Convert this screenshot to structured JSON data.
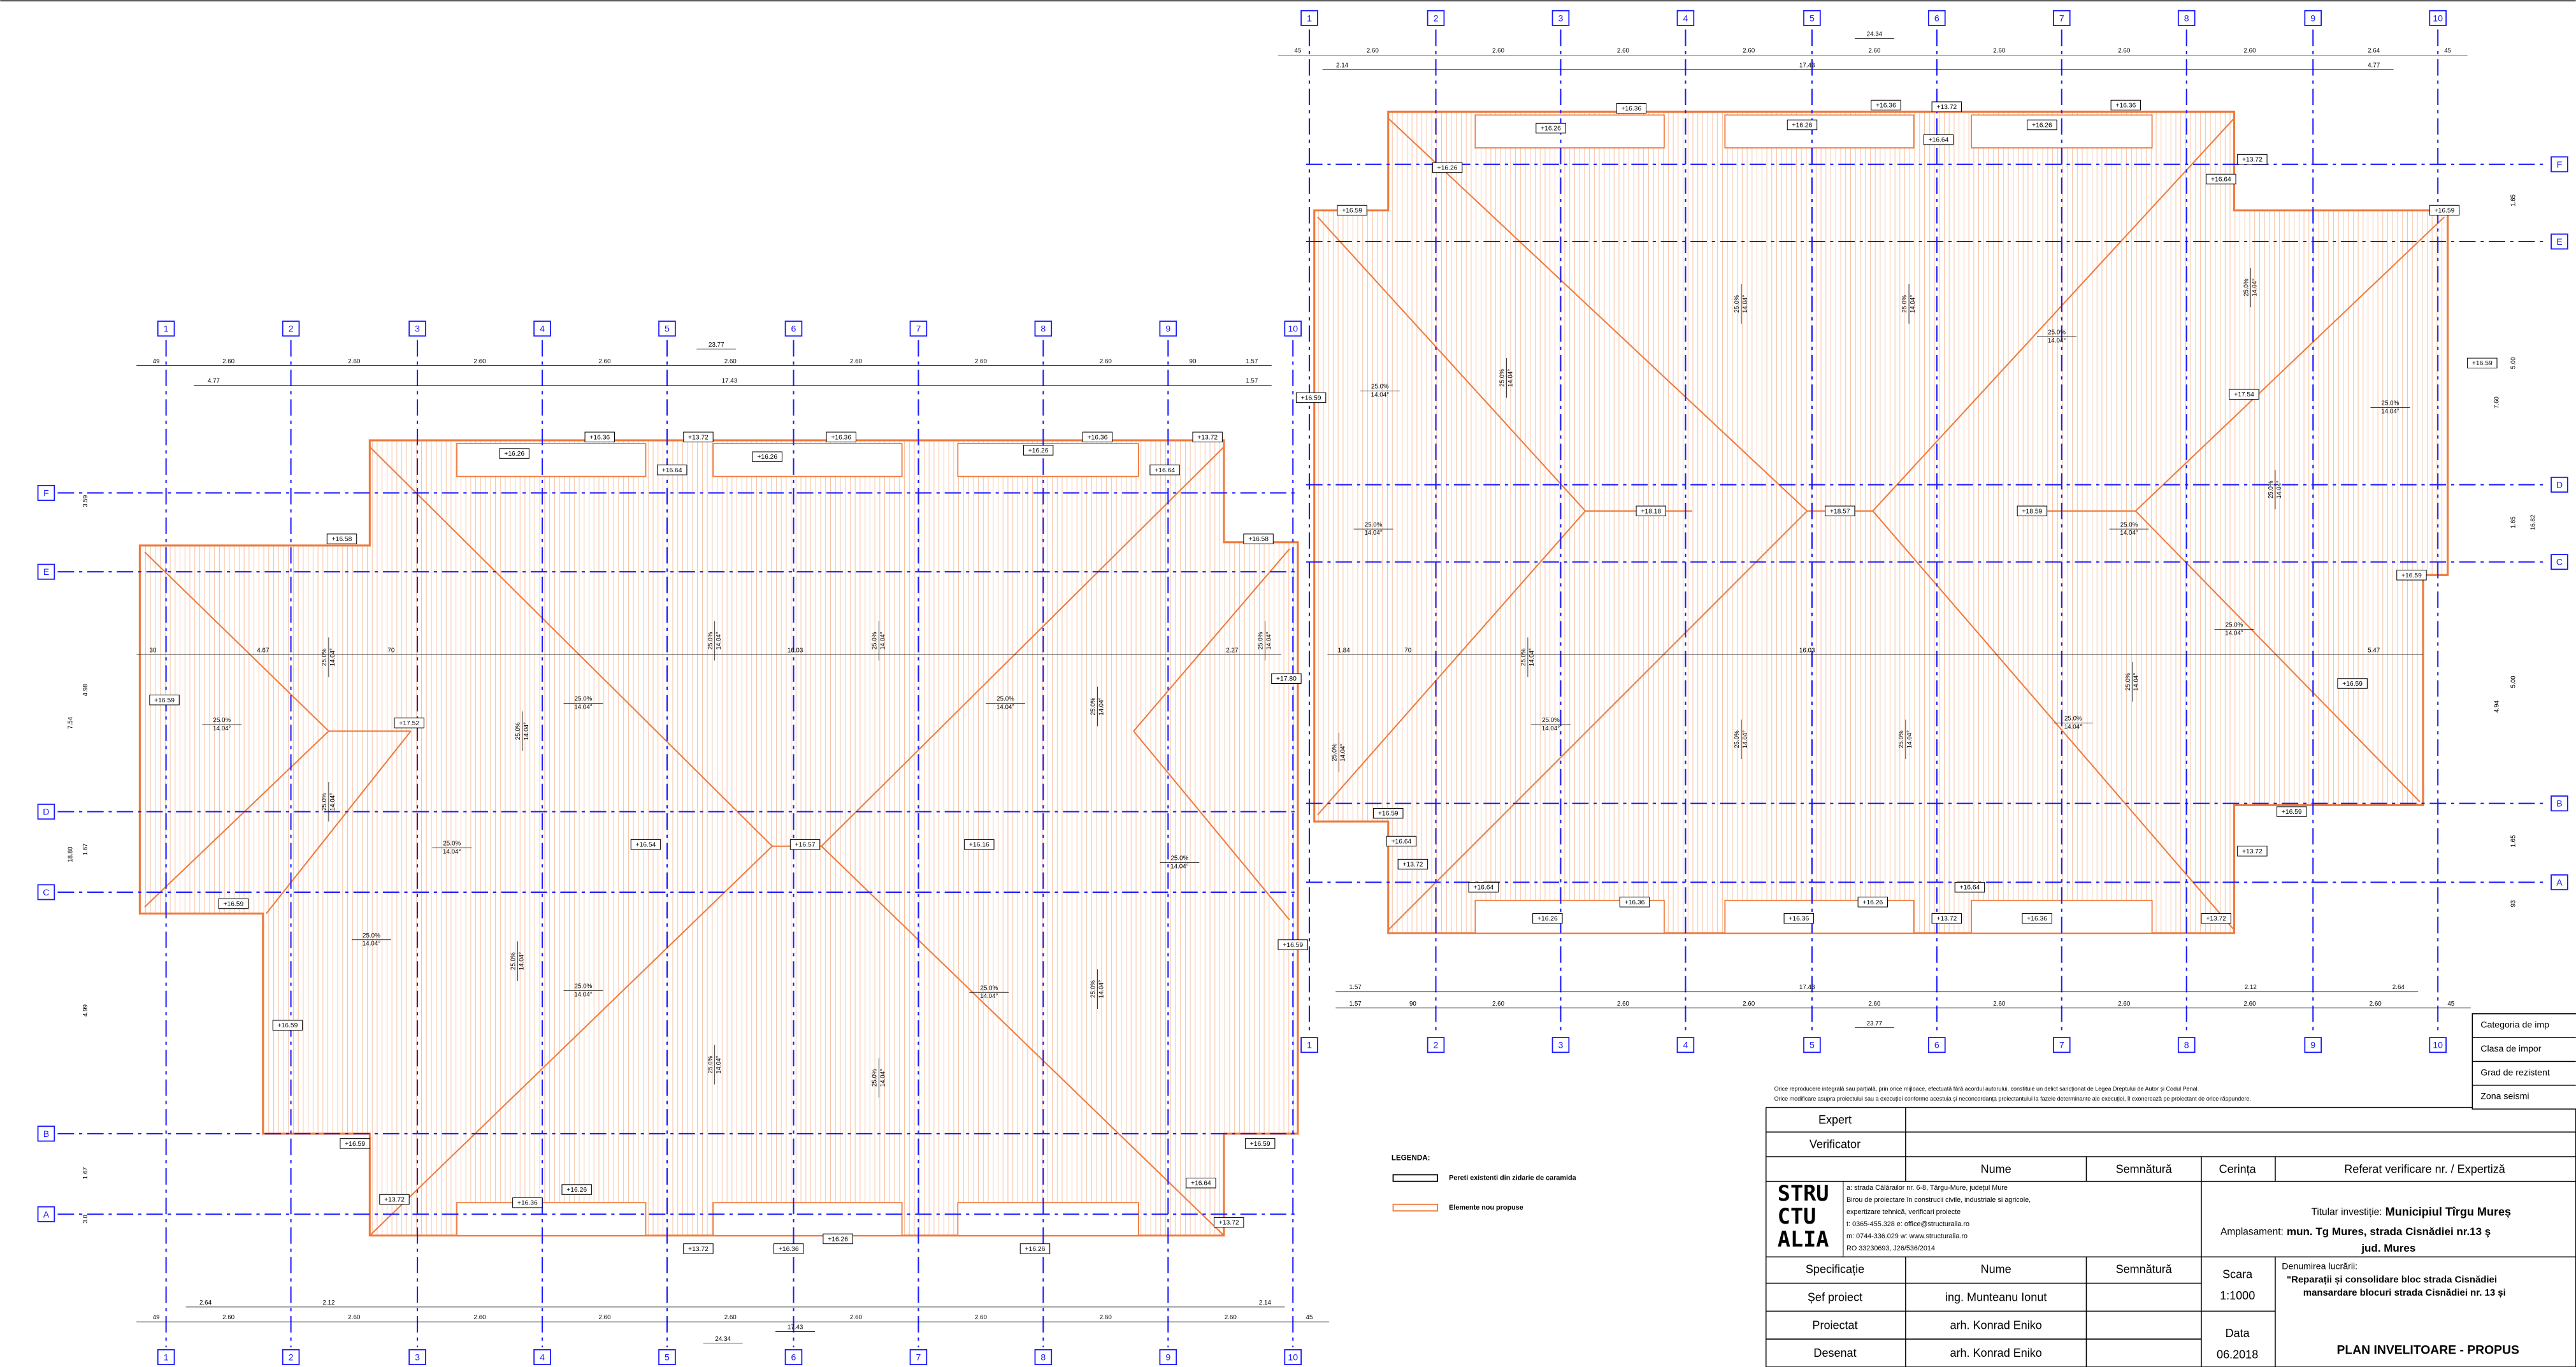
{
  "left_plan": {
    "x_axes": [
      "1",
      "2",
      "3",
      "4",
      "5",
      "6",
      "7",
      "8",
      "9",
      "10"
    ],
    "y_axes": [
      "F",
      "E",
      "D",
      "C",
      "B",
      "A"
    ],
    "dims_top": [
      [
        "23.77"
      ],
      [
        "49",
        "2.60",
        "2.60",
        "2.60",
        "2.60",
        "2.60",
        "2.60",
        "2.60",
        "2.60",
        "90",
        "1.57"
      ],
      [
        "4.77",
        "17.43",
        "1.57"
      ]
    ],
    "dims_mid": [
      "30",
      "4.67",
      "70",
      "16.03",
      "2.27"
    ],
    "dims_bottom": [
      [
        "2.64",
        "2.12",
        "2.14"
      ],
      [
        "49",
        "2.60",
        "2.60",
        "2.60",
        "2.60",
        "2.60",
        "2.60",
        "2.60",
        "2.60",
        "2.60",
        "45"
      ],
      [
        "17.43"
      ],
      [
        "24.34"
      ]
    ],
    "dims_side": [
      "3.59",
      "4.98",
      "7.54",
      "18.80",
      "1.67",
      "4.99",
      "1.67",
      "3.0"
    ],
    "elevations": [
      "+16.36",
      "+13.72",
      "+16.26",
      "+16.26",
      "+16.36",
      "+16.26",
      "+16.36",
      "+13.72",
      "+16.64",
      "+16.64",
      "+16.58",
      "+16.58",
      "+16.59",
      "+17.52",
      "+16.54",
      "+16.57",
      "+16.16",
      "+16.59",
      "+16.59",
      "+16.59",
      "+16.59",
      "+16.59",
      "+13.72",
      "+16.64",
      "+13.72",
      "+16.36",
      "+16.26",
      "+16.36",
      "+16.26",
      "+13.72",
      "+16.26",
      "+17.80"
    ],
    "slopes": [
      [
        "25.0%",
        "14.04°"
      ],
      [
        "25.0%",
        "14.04°"
      ],
      [
        "25.0%",
        "14.04°"
      ],
      [
        "25.0%",
        "14.04°"
      ],
      [
        "25.0%",
        "14.04°"
      ],
      [
        "25.0%",
        "14.04°"
      ],
      [
        "25.0%",
        "14.04°"
      ],
      [
        "25.0%",
        "14.04°"
      ],
      [
        "25.0%",
        "14.04°"
      ],
      [
        "25.0%",
        "14.04°"
      ],
      [
        "25.0%",
        "14.04°"
      ],
      [
        "25.0%",
        "14.04°"
      ],
      [
        "25.0%",
        "14.04°"
      ],
      [
        "25.0%",
        "14.04°"
      ],
      [
        "25.0%",
        "14.04°"
      ],
      [
        "25.0%",
        "14.04°"
      ],
      [
        "25.0%",
        "14.04°"
      ],
      [
        "25.0%",
        "14.04°"
      ],
      [
        "25.0%",
        "14.04°"
      ]
    ]
  },
  "right_plan": {
    "x_axes": [
      "1",
      "2",
      "3",
      "4",
      "5",
      "6",
      "7",
      "8",
      "9",
      "10"
    ],
    "y_axes": [
      "F",
      "E",
      "D",
      "C",
      "B",
      "A"
    ],
    "dims_top": [
      [
        "24.34"
      ],
      [
        "45",
        "2.60",
        "2.60",
        "2.60",
        "2.60",
        "2.60",
        "2.60",
        "2.60",
        "2.60",
        "2.64",
        "45"
      ],
      [
        "2.14",
        "17.43",
        "4.77"
      ]
    ],
    "dims_mid": [
      "1.84",
      "70",
      "16.03",
      "5.47"
    ],
    "dims_bottom": [
      [
        "1.57",
        "17.43",
        "2.12",
        "2.64"
      ],
      [
        "1.57",
        "90",
        "2.60",
        "2.60",
        "2.60",
        "2.60",
        "2.60",
        "2.60",
        "2.60",
        "2.60",
        "45"
      ],
      [
        "23.77"
      ]
    ],
    "dims_side": [
      "1.65",
      "5.00",
      "7.60",
      "1.65",
      "16.82",
      "5.00",
      "4.94",
      "1.65",
      "93"
    ],
    "elevations": [
      "+16.36",
      "+16.26",
      "+16.36",
      "+13.72",
      "+16.26",
      "+16.64",
      "+16.26",
      "+16.36",
      "+13.72",
      "+16.64",
      "+16.59",
      "+16.59",
      "+16.26",
      "+16.59",
      "+16.59",
      "+17.54",
      "+18.18",
      "+18.57",
      "+18.59",
      "+16.59",
      "+16.59",
      "+16.59",
      "+16.59",
      "+16.64",
      "+13.72",
      "+16.64",
      "+13.72",
      "+16.26",
      "+16.36",
      "+16.36",
      "+16.26",
      "+13.72",
      "+16.64",
      "+16.36",
      "+13.72"
    ],
    "slopes": [
      [
        "25.0%",
        "14.04°"
      ],
      [
        "25.0%",
        "14.04°"
      ],
      [
        "25.0%",
        "14.04°"
      ],
      [
        "25.0%",
        "14.04°"
      ],
      [
        "25.0%",
        "14.04°"
      ],
      [
        "25.0%",
        "14.04°"
      ],
      [
        "25.0%",
        "14.04°"
      ],
      [
        "25.0%",
        "14.04°"
      ],
      [
        "25.0%",
        "14.04°"
      ],
      [
        "25.0%",
        "14.04°"
      ],
      [
        "25.0%",
        "14.04°"
      ],
      [
        "25.0%",
        "14.04°"
      ],
      [
        "25.0%",
        "14.04°"
      ],
      [
        "25.0%",
        "14.04°"
      ],
      [
        "25.0%",
        "14.04°"
      ],
      [
        "25.0%",
        "14.04°"
      ],
      [
        "25.0%",
        "14.04°"
      ],
      [
        "25.0%",
        "14.04°"
      ]
    ]
  },
  "legend": {
    "title": "LEGENDA:",
    "items": [
      "Pereti existenti din zidarie de caramida",
      "Elemente nou propuse"
    ]
  },
  "title_block": {
    "notice": [
      "Orice reproducere integrală sau parțială, prin orice mijloace, efectuată fără acordul autorului, constituie un delict sancționat de Legea Dreptului de Autor și Codul Penal.",
      "Orice modificare asupra proiectului sau a execuției conforme acestuia și neconcordanța proiectantului la fazele determinante ale execuției, îl exonerează pe proiectant de orice răspundere."
    ],
    "roles_top": [
      "Expert",
      "Verificator"
    ],
    "headers": [
      "Nume",
      "Semnătură",
      "Cerința",
      "Referat verificare nr.   /   Expertiză"
    ],
    "logo": [
      "STRU",
      "CTU",
      "ALIA"
    ],
    "company": [
      "a: strada Călărailor nr. 6-8, Târgu-Mure, județul Mure",
      "Birou de proiectare în construcii civile, industriale  si agricole,",
      "expertizare tehnică, verificari proiecte",
      "t:  0365-455.328      e:  office@structuralia.ro",
      "m: 0744-336.029      w: www.structuralia.ro",
      "RO 33230693, J26/536/2014"
    ],
    "investor_label": "Titular investiție:",
    "investor": "Municipiul Tîrgu Mureș",
    "site_label": "Amplasament:",
    "site": "mun. Tg Mures, strada Cisnădiei nr.13 ş",
    "site_2": "jud. Mures",
    "staff_headers": [
      "Specificație",
      "Nume",
      "Semnătură"
    ],
    "staff": [
      [
        "Șef proiect",
        "ing. Munteanu Ionut"
      ],
      [
        "Proiectat",
        "arh. Konrad Eniko"
      ],
      [
        "Desenat",
        "arh. Konrad Eniko"
      ]
    ],
    "scale_label": "Scara",
    "scale": "1:1000",
    "date_label": "Data",
    "date": "06.2018",
    "work_label": "Denumirea lucrării:",
    "work": [
      "\"Reparații și consolidare  bloc strada Cisnădiei",
      "mansardare blocuri strada Cisnădiei nr. 13 și"
    ],
    "drawing_title": "PLAN INVELITOARE - PROPUS",
    "side_table": [
      "Categoria de imp",
      "Clasa de impor",
      "Grad de rezistent",
      "Zona seismi"
    ]
  }
}
